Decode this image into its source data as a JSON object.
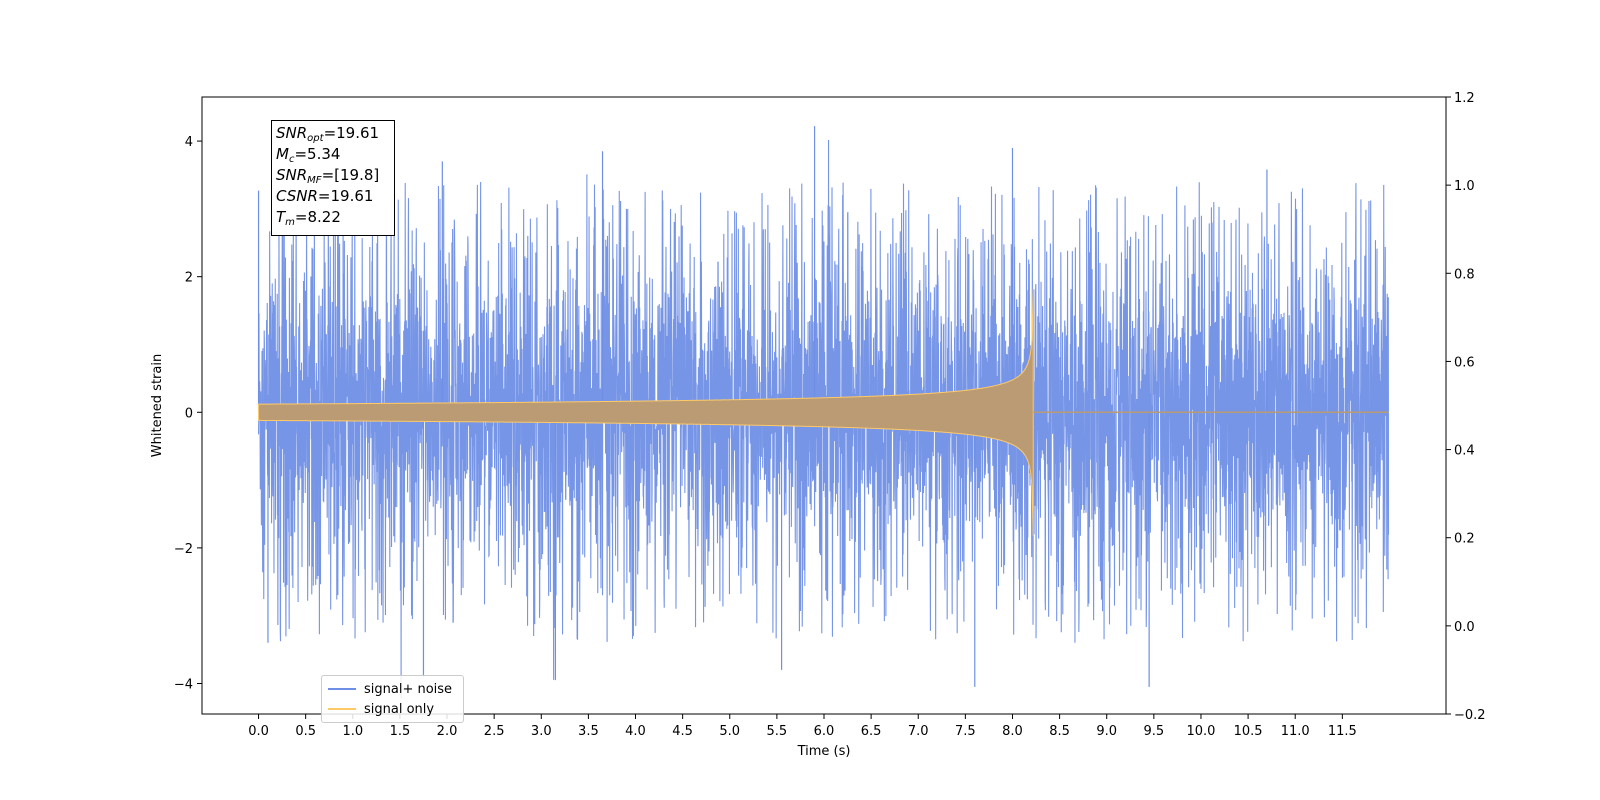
{
  "chart_data": {
    "type": "line",
    "xlabel": "Time (s)",
    "ylabel": "Whitened strain",
    "xlim": [
      -0.6,
      12.6
    ],
    "ylim": [
      -4.45,
      4.65
    ],
    "y2lim": [
      -0.2,
      1.2
    ],
    "x_ticks": [
      "0.0",
      "0.5",
      "1.0",
      "1.5",
      "2.0",
      "2.5",
      "3.0",
      "3.5",
      "4.0",
      "4.5",
      "5.0",
      "5.5",
      "6.0",
      "6.5",
      "7.0",
      "7.5",
      "8.0",
      "8.5",
      "9.0",
      "9.5",
      "10.0",
      "10.5",
      "11.0",
      "11.5"
    ],
    "y_ticks": [
      "4",
      "2",
      "0",
      "−2",
      "−4"
    ],
    "y2_ticks": [
      "1.2",
      "1.0",
      "0.8",
      "0.6",
      "0.4",
      "0.2",
      "0.0",
      "−0.2"
    ],
    "grid": false,
    "legend_position": "lower-left",
    "series": [
      {
        "name": "signal+ noise",
        "color": "#6f8fe6",
        "description_values": {
          "t_start": 0.0,
          "t_end": 11.99,
          "typical_envelope": 1.2,
          "peaks": [
            {
              "x": 0.0,
              "y": 3.27
            },
            {
              "x": 1.75,
              "y": -3.9
            },
            {
              "x": 1.95,
              "y": 3.7
            },
            {
              "x": 3.15,
              "y": -3.95
            },
            {
              "x": 3.65,
              "y": 3.85
            },
            {
              "x": 5.9,
              "y": 4.22
            },
            {
              "x": 7.6,
              "y": -4.05
            },
            {
              "x": 8.0,
              "y": 3.9
            },
            {
              "x": 9.45,
              "y": -4.05
            },
            {
              "x": 10.7,
              "y": 3.58
            },
            {
              "x": 0.1,
              "y": -3.4
            },
            {
              "x": 5.55,
              "y": -3.8
            }
          ]
        }
      },
      {
        "name": "signal only",
        "color": "#ffc966",
        "description_values": {
          "t_start": 0.0,
          "t_merger": 8.22,
          "t_end": 11.99,
          "amplitude_start": 0.12,
          "amplitude_peak": 1.82,
          "post_merger_value": 0.0
        }
      }
    ],
    "annotation": {
      "lines": [
        {
          "name": "SNR",
          "sub": "opt",
          "value": "=19.61"
        },
        {
          "name": "M",
          "sub": "c",
          "value": "=5.34"
        },
        {
          "name": "SNR",
          "sub": "MF",
          "value": "=[19.8]"
        },
        {
          "name": "CSNR",
          "sub": "",
          "value": "=19.61"
        },
        {
          "name": "T",
          "sub": "m",
          "value": "=8.22"
        }
      ]
    }
  }
}
